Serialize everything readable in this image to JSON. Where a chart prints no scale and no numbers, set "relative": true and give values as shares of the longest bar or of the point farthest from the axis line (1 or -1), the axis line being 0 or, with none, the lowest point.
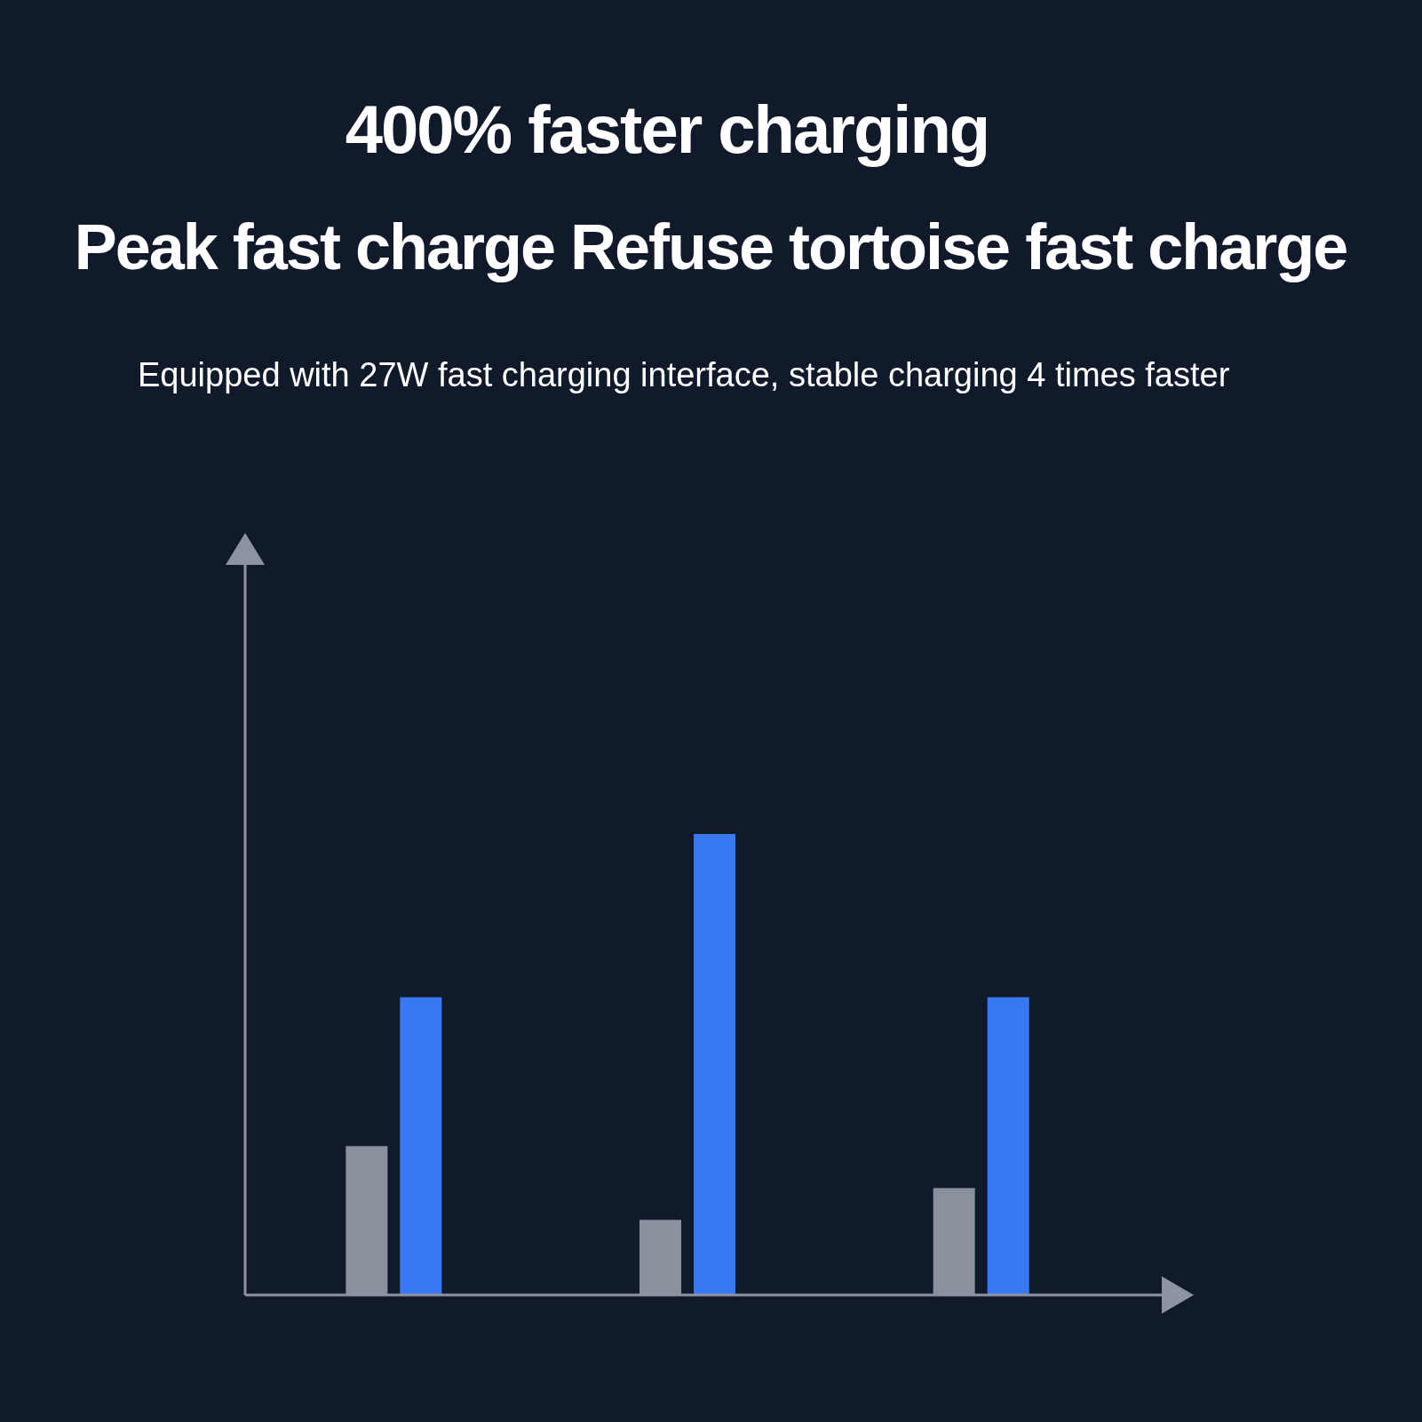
{
  "chart_data": {
    "type": "bar",
    "title": "400% faster charging",
    "subtitle": "Peak fast charge Refuse tortoise fast charge",
    "annotations": [
      "Equipped with 27W fast charging interface, stable charging 4 times faster"
    ],
    "relative": true,
    "categories": [
      null,
      null,
      null
    ],
    "series": [
      {
        "color": "#8a909c",
        "values": [
          0.323,
          0.163,
          0.232
        ]
      },
      {
        "color": "#3879f2",
        "values": [
          0.646,
          1,
          0.646
        ]
      }
    ]
  }
}
